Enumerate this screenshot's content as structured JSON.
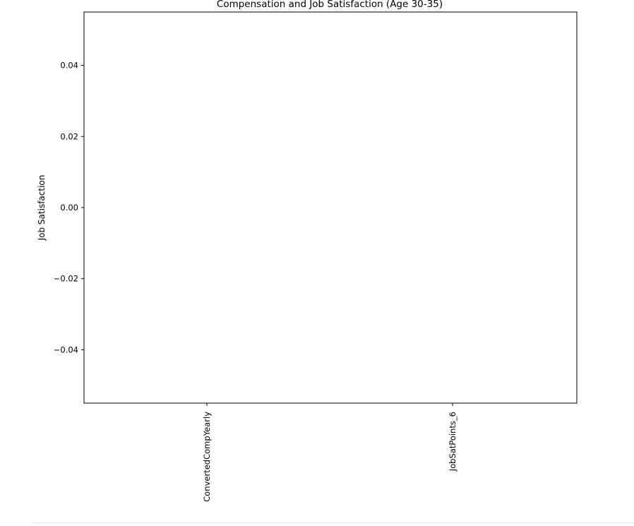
{
  "chart_data": {
    "type": "bar",
    "title": "Compensation and Job Satisfaction (Age 30-35)",
    "xlabel": "",
    "ylabel": "Job Satisfaction",
    "categories": [
      "ConvertedCompYearly",
      "JobSatPoints_6"
    ],
    "values": [
      null,
      null
    ],
    "ylim": [
      -0.055,
      0.055
    ],
    "yticks": [
      -0.04,
      -0.02,
      0.0,
      0.02,
      0.04
    ],
    "ytick_labels": [
      "−0.04",
      "−0.02",
      "0.00",
      "0.02",
      "0.04"
    ],
    "grid": false,
    "legend": "none",
    "colors": {
      "axis": "#000000",
      "text": "#000000",
      "background": "#ffffff"
    }
  }
}
